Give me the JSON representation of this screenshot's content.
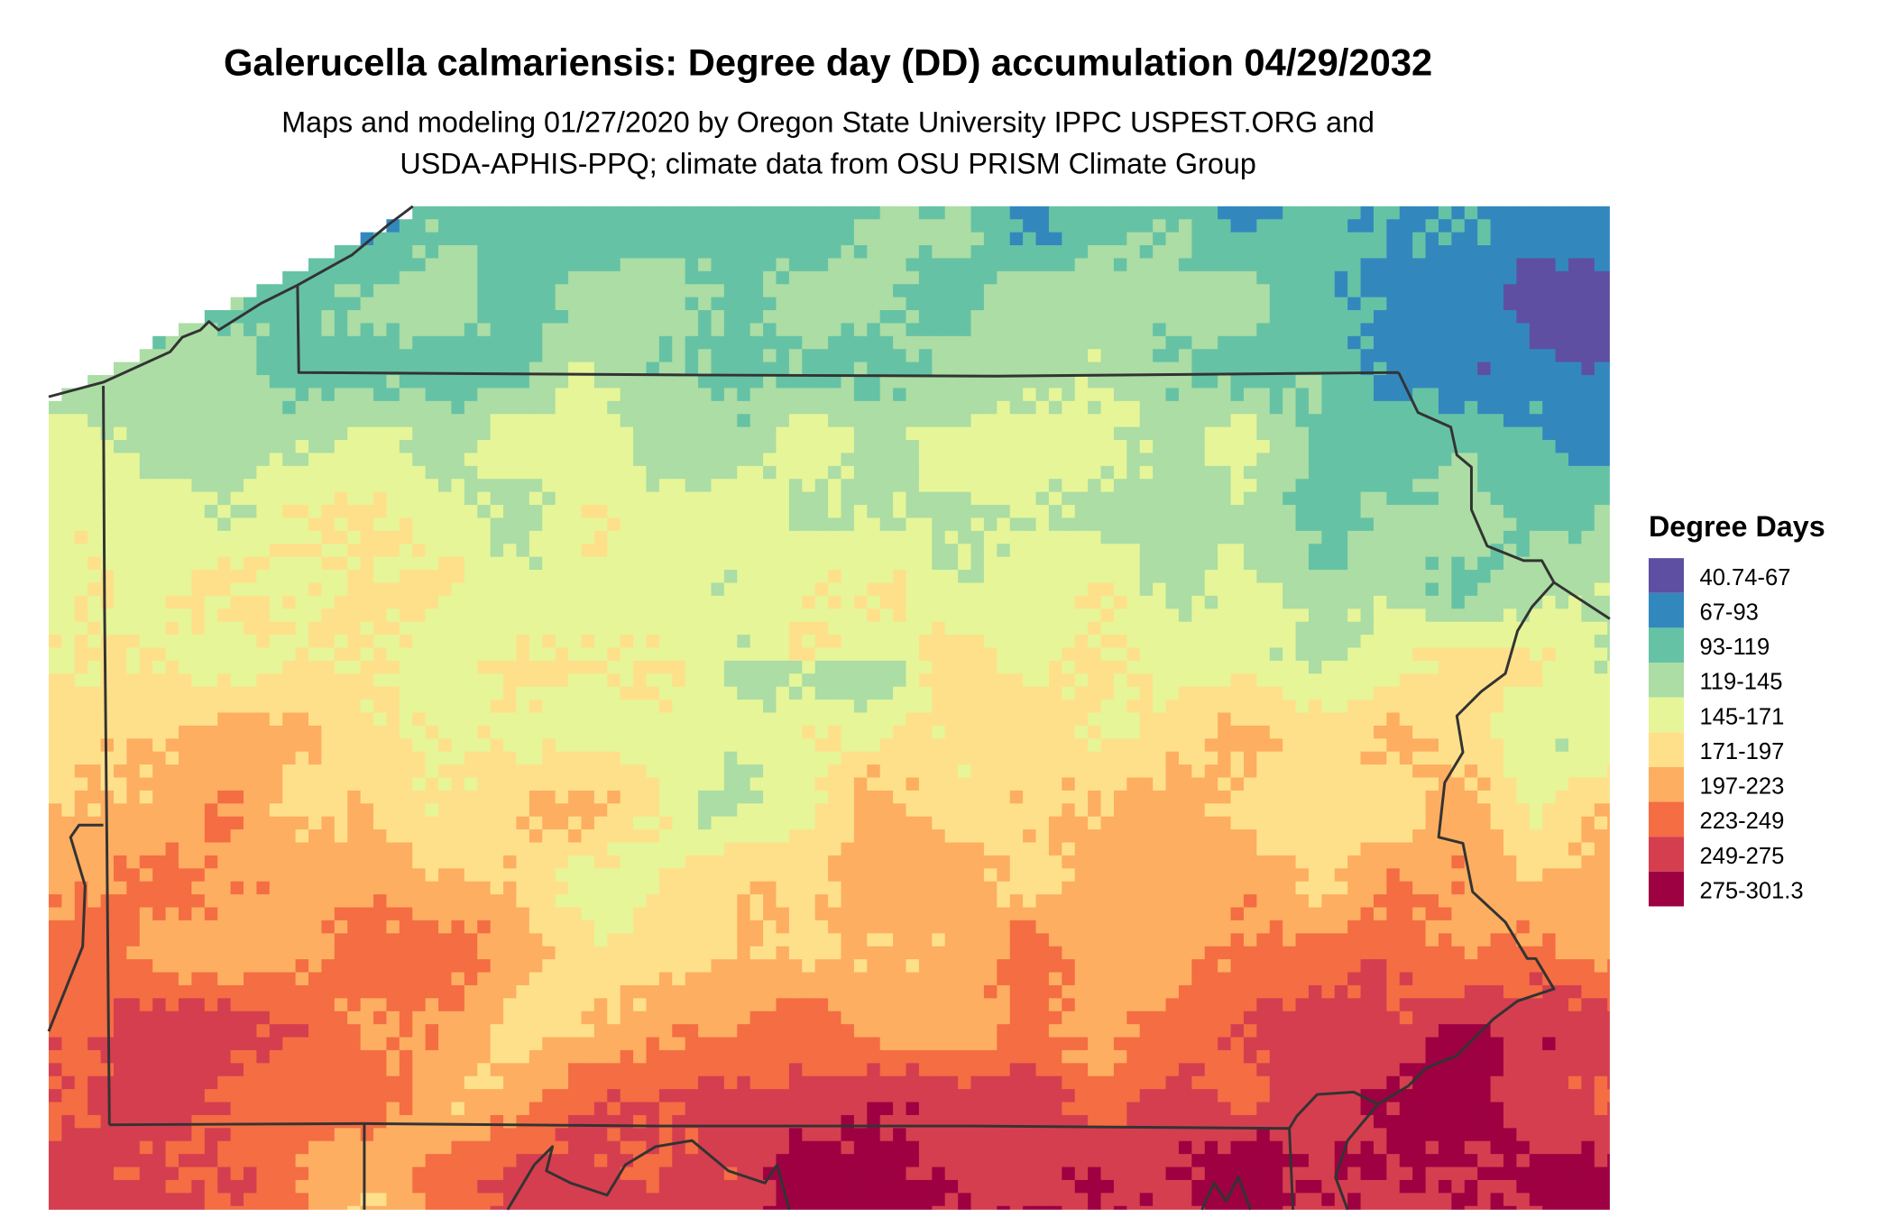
{
  "title": "Galerucella calmariensis: Degree day (DD) accumulation 04/29/2032",
  "subtitle_line1": "Maps and modeling 01/27/2020 by Oregon State University IPPC USPEST.ORG and",
  "subtitle_line2": "USDA-APHIS-PPQ; climate data from OSU PRISM Climate Group",
  "legend": {
    "title": "Degree Days",
    "items": [
      {
        "label": "40.74-67",
        "color": "#5E4FA2"
      },
      {
        "label": "67-93",
        "color": "#3288BD"
      },
      {
        "label": "93-119",
        "color": "#66C2A5"
      },
      {
        "label": "119-145",
        "color": "#ABDDA4"
      },
      {
        "label": "145-171",
        "color": "#E6F598"
      },
      {
        "label": "171-197",
        "color": "#FEE08B"
      },
      {
        "label": "197-223",
        "color": "#FDAE61"
      },
      {
        "label": "223-249",
        "color": "#F46D43"
      },
      {
        "label": "249-275",
        "color": "#D53E4F"
      },
      {
        "label": "275-301.3",
        "color": "#9E0142"
      }
    ]
  },
  "border_color": "#333333"
}
